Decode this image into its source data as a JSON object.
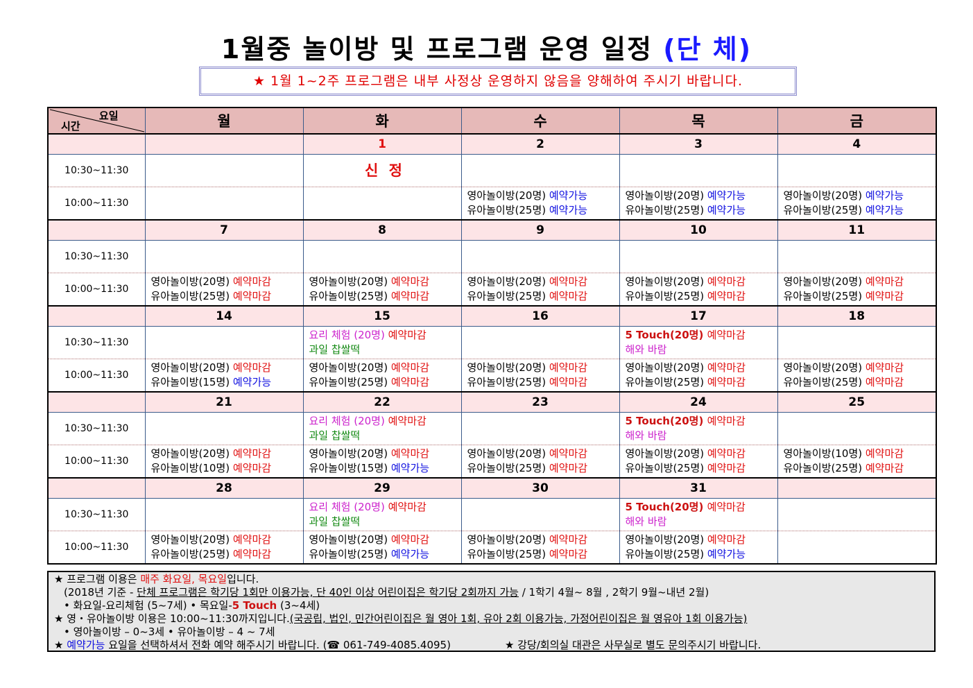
{
  "title": {
    "main": "1월중 놀이방 및 프로그램 운영 일정 ",
    "accent": "(단 체)"
  },
  "notice": "★ 1월 1~2주 프로그램은 내부 사정상 운영하지 않음을 양해하여 주시기 바랍니다.",
  "header": {
    "corner_day": "요일",
    "corner_time": "시간",
    "days": [
      "월",
      "화",
      "수",
      "목",
      "금"
    ]
  },
  "colors": {
    "header_bg": "#e6b9b8",
    "date_bg": "#fde4e6",
    "available": "#1010e0",
    "closed": "#e01010",
    "program": "#cc22cc",
    "food": "#118811"
  },
  "times": [
    "10:30~11:30",
    "10:00~11:30"
  ],
  "weeks": [
    {
      "dates": [
        "",
        "1",
        "2",
        "3",
        "4"
      ],
      "s1": [
        [],
        [
          [
            [
              "신 정",
              "big"
            ]
          ]
        ],
        [],
        [],
        []
      ],
      "s2": [
        [],
        [],
        [
          [
            [
              "영아놀이방(20명) ",
              ""
            ],
            [
              "예약가능",
              "st-ok"
            ]
          ],
          [
            [
              "유아놀이방(25명) ",
              ""
            ],
            [
              "예약가능",
              "st-ok"
            ]
          ]
        ],
        [
          [
            [
              "영아놀이방(20명) ",
              ""
            ],
            [
              "예약가능",
              "st-ok"
            ]
          ],
          [
            [
              "유아놀이방(25명) ",
              ""
            ],
            [
              "예약가능",
              "st-ok"
            ]
          ]
        ],
        [
          [
            [
              "영아놀이방(20명) ",
              ""
            ],
            [
              "예약가능",
              "st-ok"
            ]
          ],
          [
            [
              "유아놀이방(25명) ",
              ""
            ],
            [
              "예약가능",
              "st-ok"
            ]
          ]
        ]
      ]
    },
    {
      "dates": [
        "7",
        "8",
        "9",
        "10",
        "11"
      ],
      "s1": [
        [],
        [],
        [],
        [],
        []
      ],
      "s2": [
        [
          [
            [
              "영아놀이방(20명) ",
              ""
            ],
            [
              "예약마감",
              "st-closed"
            ]
          ],
          [
            [
              "유아놀이방(25명) ",
              ""
            ],
            [
              "예약마감",
              "st-closed"
            ]
          ]
        ],
        [
          [
            [
              "영아놀이방(20명) ",
              ""
            ],
            [
              "예약마감",
              "st-closed"
            ]
          ],
          [
            [
              "유아놀이방(25명) ",
              ""
            ],
            [
              "예약마감",
              "st-closed"
            ]
          ]
        ],
        [
          [
            [
              "영아놀이방(20명) ",
              ""
            ],
            [
              "예약마감",
              "st-closed"
            ]
          ],
          [
            [
              "유아놀이방(25명) ",
              ""
            ],
            [
              "예약마감",
              "st-closed"
            ]
          ]
        ],
        [
          [
            [
              "영아놀이방(20명) ",
              ""
            ],
            [
              "예약마감",
              "st-closed"
            ]
          ],
          [
            [
              "유아놀이방(25명) ",
              ""
            ],
            [
              "예약마감",
              "st-closed"
            ]
          ]
        ],
        [
          [
            [
              "영아놀이방(20명) ",
              ""
            ],
            [
              "예약마감",
              "st-closed"
            ]
          ],
          [
            [
              "유아놀이방(25명) ",
              ""
            ],
            [
              "예약마감",
              "st-closed"
            ]
          ]
        ]
      ]
    },
    {
      "dates": [
        "14",
        "15",
        "16",
        "17",
        "18"
      ],
      "s1": [
        [],
        [
          [
            [
              "요리 체험 (20명) ",
              "prog"
            ],
            [
              "예약마감",
              "st-closed"
            ]
          ],
          [
            [
              "과일 찹쌀떡",
              "food"
            ]
          ]
        ],
        [],
        [
          [
            [
              "5 Touch(20명) ",
              "touch"
            ],
            [
              "예약마감",
              "st-closed"
            ]
          ],
          [
            [
              "해와 바람",
              "prog"
            ]
          ]
        ],
        []
      ],
      "s2": [
        [
          [
            [
              "영아놀이방(20명) ",
              ""
            ],
            [
              "예약마감",
              "st-closed"
            ]
          ],
          [
            [
              "유아놀이방(15명) ",
              ""
            ],
            [
              "예약가능",
              "st-ok"
            ]
          ]
        ],
        [
          [
            [
              "영아놀이방(20명) ",
              ""
            ],
            [
              "예약마감",
              "st-closed"
            ]
          ],
          [
            [
              "유아놀이방(25명) ",
              ""
            ],
            [
              "예약마감",
              "st-closed"
            ]
          ]
        ],
        [
          [
            [
              "영아놀이방(20명) ",
              ""
            ],
            [
              "예약마감",
              "st-closed"
            ]
          ],
          [
            [
              "유아놀이방(25명) ",
              ""
            ],
            [
              "예약마감",
              "st-closed"
            ]
          ]
        ],
        [
          [
            [
              "영아놀이방(20명) ",
              ""
            ],
            [
              "예약마감",
              "st-closed"
            ]
          ],
          [
            [
              "유아놀이방(25명) ",
              ""
            ],
            [
              "예약마감",
              "st-closed"
            ]
          ]
        ],
        [
          [
            [
              "영아놀이방(20명) ",
              ""
            ],
            [
              "예약마감",
              "st-closed"
            ]
          ],
          [
            [
              "유아놀이방(25명) ",
              ""
            ],
            [
              "예약마감",
              "st-closed"
            ]
          ]
        ]
      ]
    },
    {
      "dates": [
        "21",
        "22",
        "23",
        "24",
        "25"
      ],
      "s1": [
        [],
        [
          [
            [
              "요리 체험 (20명) ",
              "prog"
            ],
            [
              "예약마감",
              "st-closed"
            ]
          ],
          [
            [
              "과일 찹쌀떡",
              "food"
            ]
          ]
        ],
        [],
        [
          [
            [
              "5 Touch(20명) ",
              "touch"
            ],
            [
              "예약마감",
              "st-closed"
            ]
          ],
          [
            [
              "해와 바람",
              "prog"
            ]
          ]
        ],
        []
      ],
      "s2": [
        [
          [
            [
              "영아놀이방(20명) ",
              ""
            ],
            [
              "예약마감",
              "st-closed"
            ]
          ],
          [
            [
              "유아놀이방(10명) ",
              ""
            ],
            [
              "예약마감",
              "st-closed"
            ]
          ]
        ],
        [
          [
            [
              "영아놀이방(20명) ",
              ""
            ],
            [
              "예약마감",
              "st-closed"
            ]
          ],
          [
            [
              "유아놀이방(15명) ",
              ""
            ],
            [
              "예약가능",
              "st-ok"
            ]
          ]
        ],
        [
          [
            [
              "영아놀이방(20명) ",
              ""
            ],
            [
              "예약마감",
              "st-closed"
            ]
          ],
          [
            [
              "유아놀이방(25명) ",
              ""
            ],
            [
              "예약마감",
              "st-closed"
            ]
          ]
        ],
        [
          [
            [
              "영아놀이방(20명) ",
              ""
            ],
            [
              "예약마감",
              "st-closed"
            ]
          ],
          [
            [
              "유아놀이방(25명) ",
              ""
            ],
            [
              "예약마감",
              "st-closed"
            ]
          ]
        ],
        [
          [
            [
              "영아놀이방(10명) ",
              ""
            ],
            [
              "예약마감",
              "st-closed"
            ]
          ],
          [
            [
              "유아놀이방(25명) ",
              ""
            ],
            [
              "예약마감",
              "st-closed"
            ]
          ]
        ]
      ]
    },
    {
      "dates": [
        "28",
        "29",
        "30",
        "31",
        ""
      ],
      "s1": [
        [],
        [
          [
            [
              "요리 체험 (20명) ",
              "prog"
            ],
            [
              "예약마감",
              "st-closed"
            ]
          ],
          [
            [
              "과일 찹쌀떡",
              "food"
            ]
          ]
        ],
        [],
        [
          [
            [
              "5 Touch(20명) ",
              "touch"
            ],
            [
              "예약마감",
              "st-closed"
            ]
          ],
          [
            [
              "해와 바람",
              "prog"
            ]
          ]
        ],
        []
      ],
      "s2": [
        [
          [
            [
              "영아놀이방(20명) ",
              ""
            ],
            [
              "예약마감",
              "st-closed"
            ]
          ],
          [
            [
              "유아놀이방(25명) ",
              ""
            ],
            [
              "예약마감",
              "st-closed"
            ]
          ]
        ],
        [
          [
            [
              "영아놀이방(20명) ",
              ""
            ],
            [
              "예약마감",
              "st-closed"
            ]
          ],
          [
            [
              "유아놀이방(25명) ",
              ""
            ],
            [
              "예약가능",
              "st-ok"
            ]
          ]
        ],
        [
          [
            [
              "영아놀이방(20명) ",
              ""
            ],
            [
              "예약마감",
              "st-closed"
            ]
          ],
          [
            [
              "유아놀이방(25명) ",
              ""
            ],
            [
              "예약마감",
              "st-closed"
            ]
          ]
        ],
        [
          [
            [
              "영아놀이방(20명) ",
              ""
            ],
            [
              "예약마감",
              "st-closed"
            ]
          ],
          [
            [
              "유아놀이방(25명) ",
              ""
            ],
            [
              "예약가능",
              "st-ok"
            ]
          ]
        ],
        []
      ]
    }
  ],
  "notes": {
    "n1a": "★ 프로그램 이용은 ",
    "n1b": "매주 화요일, 목요일",
    "n1c": "입니다.",
    "n2a": "(2018년 기준 - ",
    "n2b": "단체 프로그램은 학기당 1회만 이용가능, 단 40인 이상 어린이집은 학기당 2회까지 가능",
    "n2c": " / 1학기 4월~ 8월 , 2학기 9월~내년 2월)",
    "n3a": "• 화요일-요리체험 (5~7세)  • 목요일-",
    "n3b": "5 Touch",
    "n3c": " (3~4세)",
    "n4a": "★ 영・유아놀이방 이용은 10:00~11:30까지입니다.",
    "n4b": "(국공립, 법인, 민간어린이집은 월 영아 1회, 유아 2회 이용가능, 가정어린이집은 월 영유아 1회 이용가능)",
    "n5": "• 영아놀이방 – 0~3세   • 유아놀이방 – 4 ~ 7세",
    "n6a": "★ ",
    "n6b": "예약가능",
    "n6c": " 요일을 선택하셔서 전화 예약 해주시기 바랍니다. (☎ 061-749-4085.4095)",
    "n6d": "★ 강당/회의실 대관은 사무실로 별도 문의주시기 바랍니다."
  }
}
